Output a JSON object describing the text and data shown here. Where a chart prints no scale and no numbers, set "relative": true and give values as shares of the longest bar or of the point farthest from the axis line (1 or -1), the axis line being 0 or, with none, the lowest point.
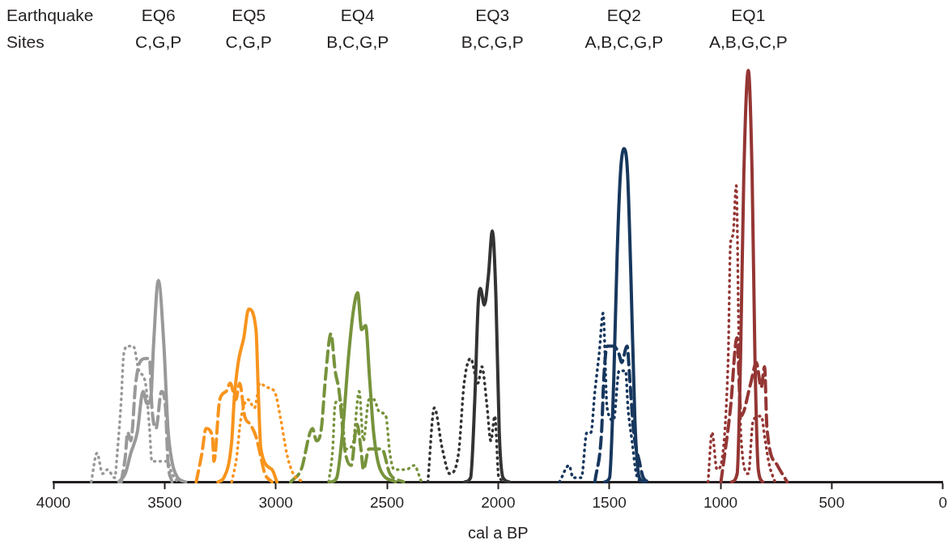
{
  "chart_data": {
    "type": "line",
    "relative": true,
    "xlabel": "cal a BP",
    "xlim": [
      4000,
      0
    ],
    "xticks": [
      4000,
      3500,
      3000,
      2500,
      2000,
      1500,
      1000,
      500,
      0
    ],
    "annotations": [
      "Earthquake\nSites",
      "EQ6\nC,G,P",
      "EQ5\nC,G,P",
      "EQ4\nB,C,G,P",
      "EQ3\nB,C,G,P",
      "EQ2\nA,B,C,G,P",
      "EQ1\nA,B,G,C,P"
    ],
    "series": [
      {
        "color": "#999999",
        "line_style": "dotted",
        "x": [
          3830,
          3804,
          3779,
          3757,
          3724,
          3713,
          3695,
          3684,
          3666,
          3641,
          3615,
          3586,
          3568,
          3557,
          3525,
          3488,
          3467,
          3441
        ],
        "values": [
          0,
          0.07,
          0.02,
          0.03,
          0.01,
          0.07,
          0.2,
          0.31,
          0.33,
          0.33,
          0.27,
          0.24,
          0.13,
          0.05,
          0.05,
          0.05,
          0.02,
          0
        ]
      },
      {
        "color": "#999999",
        "line_style": "dashed",
        "x": [
          3695,
          3677,
          3666,
          3652,
          3630,
          3612,
          3586,
          3568,
          3557,
          3539,
          3514,
          3496,
          3485,
          3467
        ],
        "values": [
          0,
          0.06,
          0.12,
          0.1,
          0.24,
          0.29,
          0.3,
          0.3,
          0.18,
          0.13,
          0.22,
          0.18,
          0.05,
          0
        ]
      },
      {
        "color": "#999999",
        "line_style": "solid",
        "x": [
          3706,
          3677,
          3652,
          3623,
          3597,
          3579,
          3561,
          3550,
          3528,
          3503,
          3485,
          3467,
          3441,
          3405
        ],
        "values": [
          0,
          0.02,
          0.07,
          0.12,
          0.22,
          0.19,
          0.21,
          0.33,
          0.49,
          0.33,
          0.13,
          0.05,
          0.01,
          0
        ]
      },
      {
        "color": "#f7941d",
        "line_style": "dashed",
        "x": [
          3358,
          3332,
          3314,
          3285,
          3278,
          3252,
          3223,
          3205,
          3180,
          3162,
          3140,
          3115,
          3089,
          3067,
          3049,
          3017
        ],
        "values": [
          0,
          0.07,
          0.13,
          0.11,
          0.05,
          0.2,
          0.22,
          0.24,
          0.2,
          0.24,
          0.16,
          0.14,
          0.11,
          0.06,
          0.02,
          0
        ]
      },
      {
        "color": "#f7941d",
        "line_style": "dotted",
        "x": [
          3198,
          3176,
          3158,
          3125,
          3096,
          3071,
          3042,
          3006,
          2977,
          2951,
          2922,
          2878
        ],
        "values": [
          0,
          0.06,
          0.15,
          0.2,
          0.18,
          0.24,
          0.23,
          0.22,
          0.15,
          0.07,
          0.02,
          0
        ]
      },
      {
        "color": "#f7941d",
        "line_style": "solid",
        "x": [
          3260,
          3234,
          3198,
          3187,
          3169,
          3144,
          3122,
          3089,
          3078,
          3067,
          3017,
          2995
        ],
        "values": [
          0,
          0.01,
          0.1,
          0.2,
          0.29,
          0.35,
          0.42,
          0.37,
          0.21,
          0.08,
          0.03,
          0
        ]
      },
      {
        "color": "#77933c",
        "line_style": "dashed",
        "x": [
          2933,
          2886,
          2835,
          2817,
          2795,
          2777,
          2752,
          2733,
          2715,
          2690,
          2661,
          2635,
          2617,
          2606,
          2581,
          2545,
          2523,
          2487,
          2425
        ],
        "values": [
          0,
          0.03,
          0.13,
          0.1,
          0.13,
          0.25,
          0.36,
          0.27,
          0.22,
          0.08,
          0.04,
          0.14,
          0.08,
          0.03,
          0.08,
          0.08,
          0.08,
          0.02,
          0
        ]
      },
      {
        "color": "#77933c",
        "line_style": "dotted",
        "x": [
          2762,
          2744,
          2733,
          2708,
          2686,
          2654,
          2625,
          2606,
          2581,
          2559,
          2534,
          2505,
          2487,
          2468,
          2414,
          2378,
          2345
        ],
        "values": [
          0,
          0.08,
          0.19,
          0.2,
          0.08,
          0.09,
          0.22,
          0.1,
          0.2,
          0.2,
          0.17,
          0.16,
          0.07,
          0.03,
          0.03,
          0.04,
          0
        ]
      },
      {
        "color": "#77933c",
        "line_style": "solid",
        "x": [
          2750,
          2726,
          2700,
          2672,
          2650,
          2632,
          2614,
          2596,
          2578,
          2560,
          2530,
          2461
        ],
        "values": [
          0,
          0.01,
          0.12,
          0.31,
          0.42,
          0.46,
          0.37,
          0.38,
          0.25,
          0.12,
          0.03,
          0
        ]
      },
      {
        "color": "#333333",
        "line_style": "dotted",
        "x": [
          2316,
          2287,
          2251,
          2218,
          2178,
          2153,
          2124,
          2091,
          2073,
          2051,
          2033,
          2015,
          1997,
          1942
        ],
        "values": [
          0,
          0.18,
          0.08,
          0.02,
          0.07,
          0.24,
          0.3,
          0.24,
          0.28,
          0.19,
          0.1,
          0.16,
          0.01,
          0
        ]
      },
      {
        "color": "#333333",
        "line_style": "solid",
        "x": [
          2150,
          2124,
          2105,
          2090,
          2080,
          2062,
          2044,
          2026,
          2010,
          1995,
          1978,
          1950
        ],
        "values": [
          0,
          0.01,
          0.2,
          0.43,
          0.47,
          0.43,
          0.5,
          0.61,
          0.45,
          0.12,
          0.01,
          0
        ]
      },
      {
        "color": "#17375e",
        "line_style": "dotted",
        "x": [
          1724,
          1681,
          1663,
          1626,
          1601,
          1583,
          1565,
          1546,
          1528,
          1510,
          1481,
          1456,
          1427,
          1416,
          1398,
          1379,
          1358
        ],
        "values": [
          0,
          0.04,
          0.01,
          0.01,
          0.12,
          0.12,
          0.22,
          0.31,
          0.41,
          0.18,
          0.15,
          0.27,
          0.27,
          0.18,
          0.1,
          0.02,
          0
        ]
      },
      {
        "color": "#17375e",
        "line_style": "dashed",
        "x": [
          1565,
          1535,
          1525,
          1510,
          1481,
          1456,
          1445,
          1420,
          1408,
          1390,
          1365,
          1347,
          1320
        ],
        "values": [
          0,
          0.12,
          0.25,
          0.33,
          0.33,
          0.31,
          0.29,
          0.33,
          0.25,
          0.12,
          0.05,
          0.01,
          0
        ]
      },
      {
        "color": "#17375e",
        "line_style": "solid",
        "x": [
          1520,
          1499,
          1480,
          1465,
          1450,
          1434,
          1418,
          1403,
          1385,
          1365,
          1340
        ],
        "values": [
          0,
          0.01,
          0.25,
          0.55,
          0.75,
          0.81,
          0.75,
          0.5,
          0.15,
          0.01,
          0
        ]
      },
      {
        "color": "#943634",
        "line_style": "dotted",
        "x": [
          1056,
          1038,
          1016,
          966,
          955,
          944,
          929,
          918,
          908,
          875,
          853,
          817,
          799,
          780,
          755
        ],
        "values": [
          0,
          0.12,
          0.03,
          0.29,
          0.58,
          0.6,
          0.72,
          0.36,
          0.11,
          0.02,
          0.15,
          0.16,
          0.1,
          0.04,
          0
        ]
      },
      {
        "color": "#943634",
        "line_style": "dashed",
        "x": [
          998,
          955,
          926,
          908,
          864,
          839,
          817,
          802,
          791,
          744,
          700
        ],
        "values": [
          0,
          0.18,
          0.35,
          0.16,
          0.24,
          0.29,
          0.23,
          0.28,
          0.13,
          0.04,
          0
        ]
      },
      {
        "color": "#943634",
        "line_style": "solid",
        "x": [
          950,
          925,
          910,
          895,
          875,
          858,
          845,
          830,
          810
        ],
        "values": [
          0,
          0.02,
          0.3,
          0.75,
          1,
          0.75,
          0.3,
          0.03,
          0
        ]
      }
    ]
  }
}
